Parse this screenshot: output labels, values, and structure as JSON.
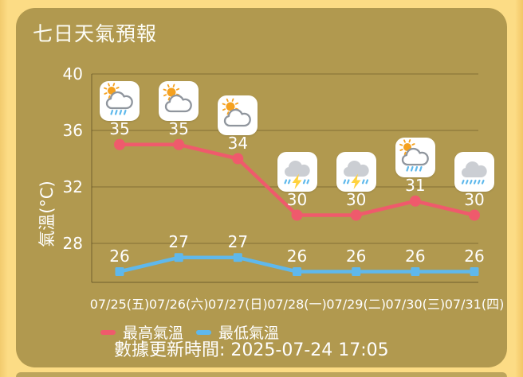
{
  "page": {
    "title": "七日天氣預報",
    "update_text": "數據更新時間: 2025-07-24 17:05"
  },
  "colors": {
    "background": "#FCDC85",
    "card": "#B1994F",
    "high_line": "#EF5A6C",
    "low_line": "#5FB8EC",
    "text": "#FFFFFF",
    "grid": "#6B5C2E",
    "icon_box": "#FFFFFF",
    "sun": "#F5A11F",
    "lightning": "#FFD23E",
    "rain": "#5FB9EC"
  },
  "chart_data": {
    "type": "line",
    "title": "七日天氣預報",
    "ylabel": "氣溫(°C)",
    "yticks": [
      28,
      32,
      36,
      40
    ],
    "ylim": [
      25.2,
      40
    ],
    "grid": true,
    "legend_position": "bottom",
    "categories": [
      "07/25(五)",
      "07/26(六)",
      "07/27(日)",
      "07/28(一)",
      "07/29(二)",
      "07/30(三)",
      "07/31(四)"
    ],
    "series": [
      {
        "name": "最高氣溫",
        "color": "#EF5A6C",
        "marker": "circle",
        "values": [
          35,
          35,
          34,
          30,
          30,
          31,
          30
        ]
      },
      {
        "name": "最低氣溫",
        "color": "#5FB8EC",
        "marker": "square",
        "values": [
          26,
          27,
          27,
          26,
          26,
          26,
          26
        ]
      }
    ],
    "day_icons": [
      "sun-cloud-rain-icon",
      "sun-cloud-icon",
      "sun-cloud-icon",
      "thunderstorm-icon",
      "thunderstorm-icon",
      "sun-cloud-rain-icon",
      "cloud-rain-icon"
    ]
  }
}
